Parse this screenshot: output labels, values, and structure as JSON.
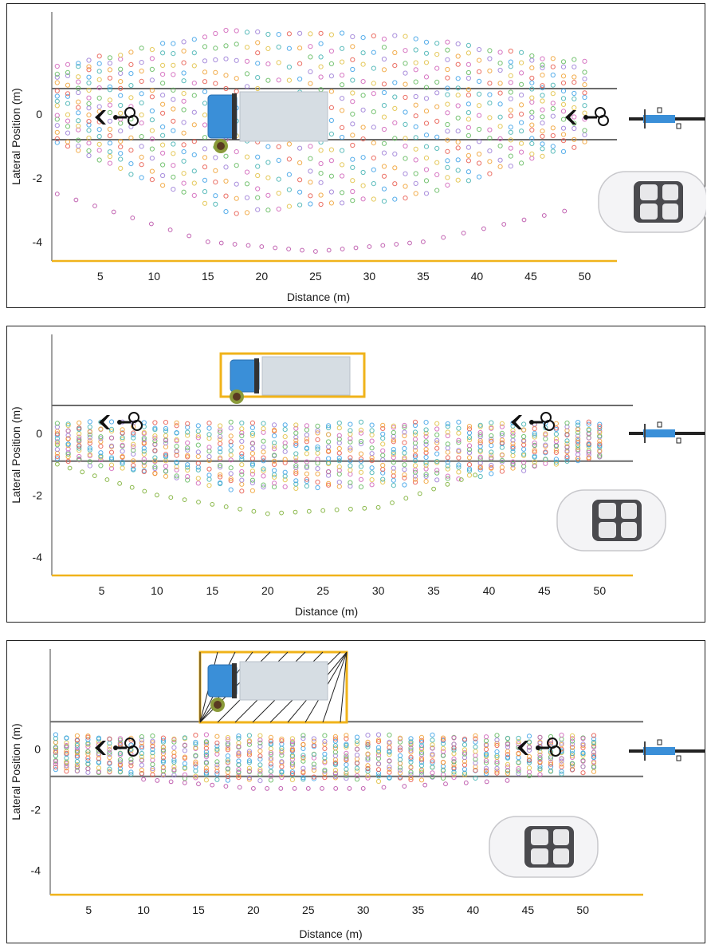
{
  "colors": {
    "boundary": "#f0b31a",
    "lane_line": "#6b6b6b",
    "axis": "#444444",
    "dot_palette": [
      "#3aa0e6",
      "#e8574a",
      "#f0a030",
      "#9a7ad6",
      "#5fb85a",
      "#d060b8",
      "#e0c040",
      "#40b0b0"
    ],
    "truck_cab": "#3a8fd8",
    "truck_box": "#d6dde3"
  },
  "icons": [
    "cyclist-icon",
    "bicycle-icon",
    "car-icon",
    "truck-icon",
    "pedestrian-icon"
  ],
  "chart_data": [
    {
      "type": "scatter",
      "xlabel": "Distance (m)",
      "ylabel": "Lateral Position (m)",
      "x_ticks": [
        5,
        10,
        15,
        20,
        25,
        30,
        35,
        40,
        45,
        50
      ],
      "y_ticks": [
        0,
        -2,
        -4
      ],
      "xlim": [
        0.5,
        53
      ],
      "ylim": [
        -4.6,
        3.2
      ],
      "lane_lines": [
        0.8,
        -0.8
      ],
      "boundary_box": false,
      "series": [
        {
          "x_range": [
            1,
            50
          ],
          "upper": [
            1.5,
            2.6,
            2.4,
            1.6
          ],
          "lower": [
            -0.9,
            -3.1,
            -2.6,
            -0.9
          ],
          "note_points": [
            [
              1,
              -2.5
            ],
            [
              15,
              -4.0
            ],
            [
              25,
              -4.3
            ],
            [
              35,
              -4.0
            ],
            [
              50,
              -2.9
            ]
          ]
        }
      ]
    },
    {
      "type": "scatter",
      "xlabel": "Distance (m)",
      "ylabel": "Lateral Position (m)",
      "x_ticks": [
        5,
        10,
        15,
        20,
        25,
        30,
        35,
        40,
        45,
        50
      ],
      "y_ticks": [
        0,
        -2,
        -4
      ],
      "xlim": [
        0.5,
        53
      ],
      "ylim": [
        -4.6,
        3.2
      ],
      "lane_lines": [
        0.9,
        -0.9
      ],
      "boundary_box": true,
      "series": [
        {
          "x_range": [
            1,
            50
          ],
          "upper": [
            0.3,
            0.3,
            0.3,
            0.3
          ],
          "lower": [
            -0.8,
            -1.8,
            -1.6,
            -0.8
          ],
          "note_points": [
            [
              1,
              -1.0
            ],
            [
              10,
              -2.0
            ],
            [
              20,
              -2.6
            ],
            [
              30,
              -2.4
            ],
            [
              40,
              -1.2
            ]
          ]
        }
      ]
    },
    {
      "type": "scatter",
      "xlabel": "Distance (m)",
      "ylabel": "Lateral Position (m)",
      "x_ticks": [
        5,
        10,
        15,
        20,
        25,
        30,
        35,
        40,
        45,
        50
      ],
      "y_ticks": [
        0,
        -2,
        -4
      ],
      "xlim": [
        1.5,
        55.5
      ],
      "ylim": [
        -4.8,
        3.3
      ],
      "lane_lines": [
        0.9,
        -0.9
      ],
      "boundary_box": true,
      "hatched": true,
      "series": [
        {
          "x_range": [
            2,
            51
          ],
          "upper": [
            0.4,
            0.4,
            0.4,
            0.4
          ],
          "lower": [
            -0.7,
            -1.0,
            -1.0,
            -0.7
          ],
          "note_points": [
            [
              10,
              -1.0
            ],
            [
              20,
              -1.3
            ],
            [
              30,
              -1.3
            ],
            [
              45,
              -1.0
            ]
          ]
        }
      ]
    }
  ]
}
